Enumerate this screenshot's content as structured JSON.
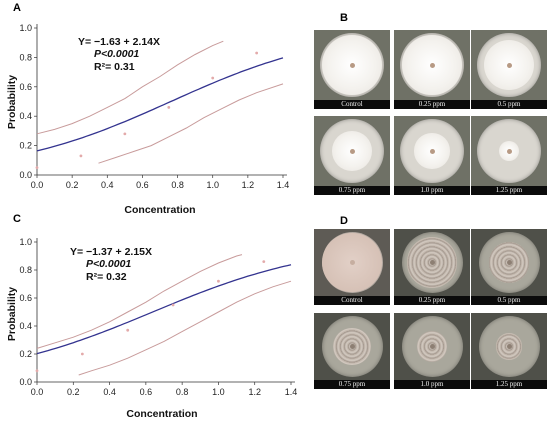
{
  "panels": {
    "A": "A",
    "B": "B",
    "C": "C",
    "D": "D"
  },
  "chart_data": [
    {
      "panel": "A",
      "type": "line",
      "equation": "Y= −1.63 + 2.14X",
      "pvalue": "P<0.0001",
      "r2": "R²= 0.31",
      "xlabel": "Concentration",
      "ylabel": "Probability",
      "xlim": [
        0,
        1.4
      ],
      "ylim": [
        0,
        1.0
      ],
      "x_ticks": [
        "0.0",
        "0.2",
        "0.4",
        "0.6",
        "0.8",
        "1.0",
        "1.2",
        "1.4"
      ],
      "y_ticks": [
        "0.0",
        "0.2",
        "0.4",
        "0.6",
        "0.8",
        "1.0"
      ],
      "intercept": -1.63,
      "slope": 2.14,
      "x_range": [
        0,
        1.4
      ],
      "upper_band": {
        "x": [
          0,
          0.1,
          0.2,
          0.3,
          0.4,
          0.5,
          0.6,
          0.7,
          0.8,
          0.9,
          1.0,
          1.06
        ],
        "y": [
          0.28,
          0.31,
          0.35,
          0.4,
          0.46,
          0.52,
          0.6,
          0.67,
          0.75,
          0.82,
          0.88,
          0.91
        ]
      },
      "lower_band": {
        "x": [
          0.35,
          0.45,
          0.55,
          0.65,
          0.75,
          0.85,
          0.95,
          1.05,
          1.15,
          1.25,
          1.4
        ],
        "y": [
          0.08,
          0.12,
          0.16,
          0.2,
          0.26,
          0.32,
          0.39,
          0.45,
          0.51,
          0.56,
          0.62
        ]
      },
      "points": {
        "x": [
          0.0,
          0.25,
          0.5,
          0.75,
          1.0,
          1.25
        ],
        "y": [
          0.05,
          0.13,
          0.28,
          0.46,
          0.66,
          0.83
        ]
      }
    },
    {
      "panel": "C",
      "type": "line",
      "equation": "Y= −1.37 + 2.15X",
      "pvalue": "P<0.0001",
      "r2": "R²= 0.32",
      "xlabel": "Concentration",
      "ylabel": "Probability",
      "xlim": [
        0,
        1.4
      ],
      "ylim": [
        0,
        1.0
      ],
      "x_ticks": [
        "0.0",
        "0.2",
        "0.4",
        "0.6",
        "0.8",
        "1.0",
        "1.2",
        "1.4"
      ],
      "y_ticks": [
        "0.0",
        "0.2",
        "0.4",
        "0.6",
        "0.8",
        "1.0"
      ],
      "intercept": -1.37,
      "slope": 2.15,
      "x_range": [
        0,
        1.4
      ],
      "upper_band": {
        "x": [
          0,
          0.1,
          0.2,
          0.3,
          0.4,
          0.5,
          0.6,
          0.7,
          0.8,
          0.9,
          1.0,
          1.1,
          1.13
        ],
        "y": [
          0.24,
          0.28,
          0.32,
          0.37,
          0.43,
          0.5,
          0.57,
          0.65,
          0.72,
          0.79,
          0.85,
          0.9,
          0.91
        ]
      },
      "lower_band": {
        "x": [
          0.23,
          0.3,
          0.4,
          0.5,
          0.6,
          0.7,
          0.8,
          0.9,
          1.0,
          1.1,
          1.2,
          1.3,
          1.4
        ],
        "y": [
          0.05,
          0.08,
          0.12,
          0.17,
          0.23,
          0.29,
          0.36,
          0.43,
          0.5,
          0.57,
          0.63,
          0.68,
          0.72
        ]
      },
      "points": {
        "x": [
          0.0,
          0.25,
          0.5,
          0.75,
          1.0,
          1.25
        ],
        "y": [
          0.08,
          0.2,
          0.37,
          0.55,
          0.72,
          0.86
        ]
      }
    }
  ],
  "dish_grids": [
    {
      "panel": "B",
      "dishes": [
        {
          "label": "Control",
          "colony": "fluffy",
          "coverage": 0.95
        },
        {
          "label": "0.25 ppm",
          "colony": "fluffy",
          "coverage": 0.93
        },
        {
          "label": "0.5 ppm",
          "colony": "fluffy",
          "coverage": 0.78
        },
        {
          "label": "0.75 ppm",
          "colony": "fluffy",
          "coverage": 0.62
        },
        {
          "label": "1.0 ppm",
          "colony": "fluffy",
          "coverage": 0.55
        },
        {
          "label": "1.25 ppm",
          "colony": "fluffy",
          "coverage": 0.32
        }
      ]
    },
    {
      "panel": "D",
      "dishes": [
        {
          "label": "Control",
          "colony": "flat",
          "coverage": 0.97
        },
        {
          "label": "0.25 ppm",
          "colony": "wrinkled",
          "coverage": 0.82
        },
        {
          "label": "0.5 ppm",
          "colony": "wrinkled",
          "coverage": 0.66
        },
        {
          "label": "0.75 ppm",
          "colony": "wrinkled",
          "coverage": 0.62
        },
        {
          "label": "1.0 ppm",
          "colony": "wrinkled",
          "coverage": 0.5
        },
        {
          "label": "1.25 ppm",
          "colony": "wrinkled",
          "coverage": 0.44
        }
      ]
    }
  ],
  "colors": {
    "fit_line": "#33338f",
    "band_line": "#c89b9b",
    "point": "#e3aaaa",
    "axis": "#333333"
  }
}
